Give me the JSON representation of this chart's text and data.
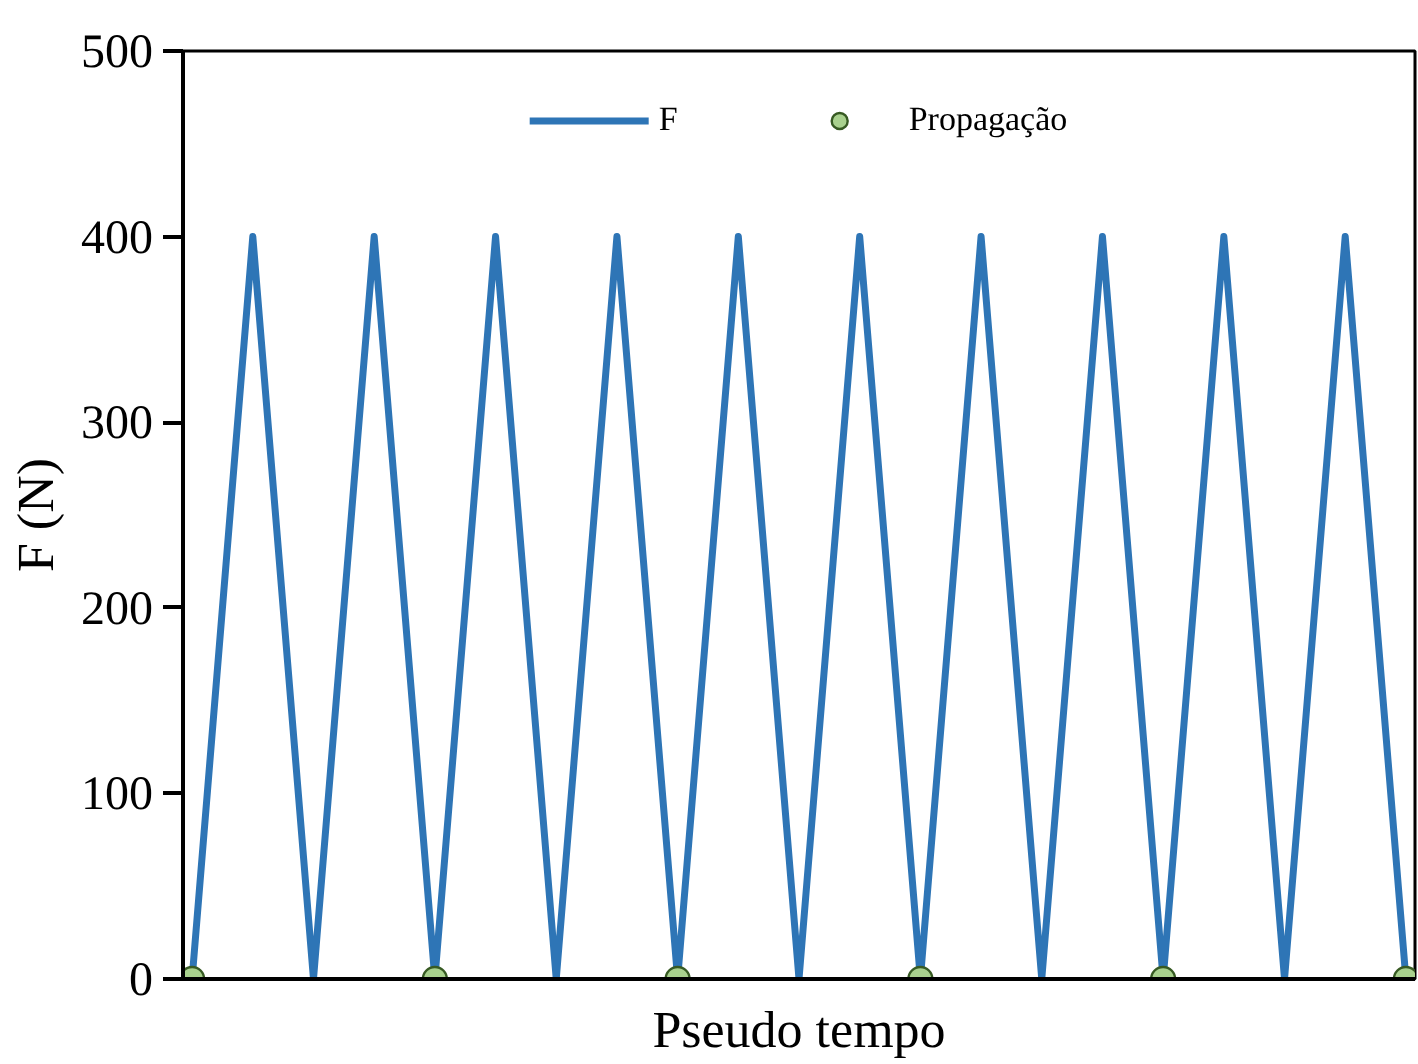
{
  "chart_data": {
    "type": "line",
    "xlabel": "Pseudo tempo",
    "ylabel": "F (N)",
    "categories": [
      null,
      null,
      null,
      null,
      null,
      null,
      null,
      null,
      null,
      null,
      null,
      null,
      null,
      null,
      null,
      null,
      null,
      null,
      null,
      null,
      null
    ],
    "series": [
      {
        "name": "F",
        "color": "#2e75b6",
        "values": [
          0,
          400,
          0,
          400,
          0,
          400,
          0,
          400,
          0,
          400,
          0,
          400,
          0,
          400,
          0,
          400,
          0,
          400,
          0,
          400,
          0
        ]
      },
      {
        "name": "Propagação",
        "type": "scatter",
        "color": "#a9d18e",
        "marker": "circle",
        "values": [
          0,
          null,
          null,
          null,
          0,
          null,
          null,
          null,
          0,
          null,
          null,
          null,
          0,
          null,
          null,
          null,
          0,
          null,
          null,
          null,
          0
        ]
      }
    ],
    "ylim": [
      0,
      500
    ],
    "yticks": [
      0,
      100,
      200,
      300,
      400,
      500
    ],
    "grid": false,
    "legend": "top",
    "tick_labels": "y"
  }
}
